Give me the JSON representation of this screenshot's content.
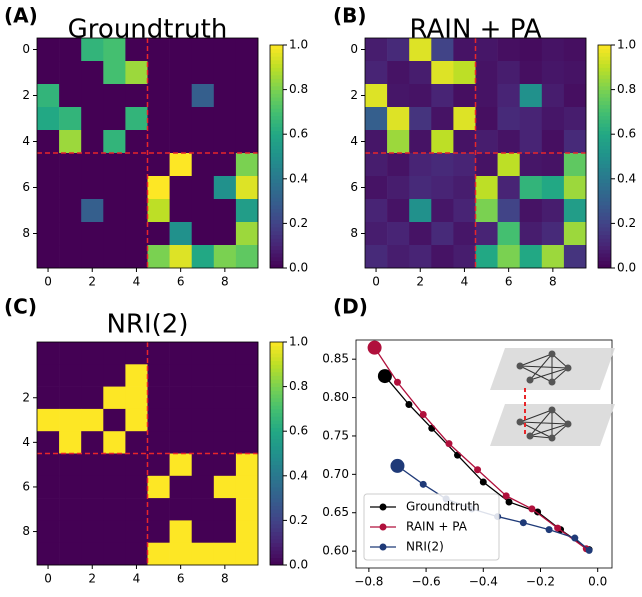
{
  "chart_data": [
    {
      "type": "heatmap",
      "label": "(A)",
      "title": "Groundtruth",
      "colormap": "viridis",
      "values": [
        [
          0,
          0,
          0.65,
          0.7,
          0,
          0,
          0,
          0,
          0,
          0
        ],
        [
          0,
          0,
          0,
          0.7,
          0.85,
          0,
          0,
          0,
          0,
          0
        ],
        [
          0.65,
          0,
          0,
          0,
          0,
          0,
          0,
          0.3,
          0,
          0
        ],
        [
          0.6,
          0.65,
          0,
          0,
          0.65,
          0,
          0,
          0,
          0,
          0
        ],
        [
          0,
          0.85,
          0,
          0.65,
          0,
          0,
          0,
          0,
          0,
          0
        ],
        [
          0,
          0,
          0,
          0,
          0,
          0,
          1.0,
          0,
          0,
          0.8
        ],
        [
          0,
          0,
          0,
          0,
          0,
          1.0,
          0,
          0,
          0.5,
          0.95
        ],
        [
          0,
          0,
          0.3,
          0,
          0,
          0.9,
          0,
          0,
          0,
          0.55
        ],
        [
          0,
          0,
          0,
          0,
          0,
          0,
          0.5,
          0,
          0,
          0.85
        ],
        [
          0,
          0,
          0,
          0,
          0,
          0.8,
          0.95,
          0.6,
          0.8,
          0.75
        ]
      ],
      "xlim": [
        -0.5,
        9.5
      ],
      "ylim": [
        9.5,
        -0.5
      ],
      "xticks": [
        0,
        2,
        4,
        6,
        8
      ],
      "yticks": [
        0,
        2,
        4,
        6,
        8
      ],
      "dividers": [
        4.5
      ],
      "divider_color": "#e8262a",
      "clim": [
        0,
        1
      ],
      "cticks": [
        {
          "value": 0,
          "label": "0.0"
        },
        {
          "value": 0.2,
          "label": "0.2"
        },
        {
          "value": 0.4,
          "label": "0.4"
        },
        {
          "value": 0.6,
          "label": "0.6"
        },
        {
          "value": 0.8,
          "label": "0.8"
        },
        {
          "value": 1,
          "label": "1.0"
        }
      ]
    },
    {
      "type": "heatmap",
      "label": "(B)",
      "title": "RAIN + PA",
      "colormap": "viridis",
      "values": [
        [
          0.08,
          0.12,
          0.95,
          0.2,
          0.05,
          0.06,
          0.04,
          0.03,
          0.05,
          0.04
        ],
        [
          0.1,
          0.05,
          0.08,
          0.95,
          0.9,
          0.05,
          0.08,
          0.04,
          0.06,
          0.05
        ],
        [
          0.95,
          0.06,
          0.05,
          0.1,
          0.04,
          0.05,
          0.1,
          0.5,
          0.08,
          0.04
        ],
        [
          0.3,
          0.95,
          0.15,
          0.05,
          0.95,
          0.04,
          0.12,
          0.1,
          0.06,
          0.08
        ],
        [
          0.06,
          0.85,
          0.05,
          0.9,
          0.05,
          0.08,
          0.05,
          0.1,
          0.04,
          0.12
        ],
        [
          0.08,
          0.05,
          0.1,
          0.12,
          0.1,
          0.05,
          0.9,
          0.06,
          0.05,
          0.75
        ],
        [
          0.05,
          0.08,
          0.12,
          0.1,
          0.08,
          0.9,
          0.1,
          0.65,
          0.6,
          0.85
        ],
        [
          0.1,
          0.05,
          0.5,
          0.06,
          0.1,
          0.8,
          0.2,
          0.05,
          0.08,
          0.55
        ],
        [
          0.08,
          0.1,
          0.05,
          0.12,
          0.06,
          0.1,
          0.7,
          0.08,
          0.12,
          0.85
        ],
        [
          0.12,
          0.08,
          0.1,
          0.05,
          0.08,
          0.6,
          0.8,
          0.6,
          0.85,
          0.15
        ]
      ],
      "xlim": [
        -0.5,
        9.5
      ],
      "ylim": [
        9.5,
        -0.5
      ],
      "xticks": [
        0,
        2,
        4,
        6,
        8
      ],
      "yticks": [
        0,
        2,
        4,
        6,
        8
      ],
      "dividers": [
        4.5
      ],
      "divider_color": "#e8262a",
      "clim": [
        0,
        1
      ],
      "cticks": [
        {
          "value": 0,
          "label": "0.0"
        },
        {
          "value": 0.2,
          "label": "0.2"
        },
        {
          "value": 0.4,
          "label": "0.4"
        },
        {
          "value": 0.6,
          "label": "0.6"
        },
        {
          "value": 0.8,
          "label": "0.8"
        },
        {
          "value": 1,
          "label": "1.0"
        }
      ]
    },
    {
      "type": "heatmap",
      "label": "(C)",
      "title": "NRI(2)",
      "colormap": "viridis",
      "values": [
        [
          0,
          0,
          0,
          0,
          0,
          0,
          0,
          0,
          0,
          0
        ],
        [
          0,
          0,
          0,
          0,
          1,
          0,
          0,
          0,
          0,
          0
        ],
        [
          0,
          0,
          0,
          1,
          1,
          0,
          0,
          0,
          0,
          0
        ],
        [
          1,
          1,
          1,
          0,
          1,
          0,
          0,
          0,
          0,
          0
        ],
        [
          0,
          1,
          0,
          1,
          0,
          0,
          0,
          0,
          0,
          0
        ],
        [
          0,
          0,
          0,
          0,
          0,
          0,
          1,
          0,
          0,
          1
        ],
        [
          0,
          0,
          0,
          0,
          0,
          1,
          0,
          0,
          1,
          1
        ],
        [
          0,
          0,
          0,
          0,
          0,
          0,
          0,
          0,
          0,
          1
        ],
        [
          0,
          0,
          0,
          0,
          0,
          0,
          1,
          0,
          0,
          1
        ],
        [
          0,
          0,
          0,
          0,
          0,
          1,
          1,
          1,
          1,
          1
        ]
      ],
      "xlim": [
        -0.5,
        9.5
      ],
      "ylim": [
        9.5,
        -0.5
      ],
      "xticks": [
        0,
        2,
        4,
        6,
        8
      ],
      "yticks": [
        2,
        4,
        6,
        8
      ],
      "dividers": [
        4.5
      ],
      "divider_color": "#e8262a",
      "clim": [
        0,
        1
      ],
      "cticks": [
        {
          "value": 0,
          "label": "0.0"
        },
        {
          "value": 0.2,
          "label": "0.2"
        },
        {
          "value": 0.4,
          "label": "0.4"
        },
        {
          "value": 0.6,
          "label": "0.6"
        },
        {
          "value": 0.8,
          "label": "0.8"
        },
        {
          "value": 1,
          "label": "1.0"
        }
      ]
    },
    {
      "type": "line",
      "label": "(D)",
      "xlim": [
        -0.845,
        0.05
      ],
      "ylim": [
        0.578,
        0.875
      ],
      "xticks": [
        {
          "value": -0.8,
          "label": "−0.8"
        },
        {
          "value": -0.6,
          "label": "−0.6"
        },
        {
          "value": -0.4,
          "label": "−0.4"
        },
        {
          "value": -0.2,
          "label": "−0.2"
        },
        {
          "value": 0,
          "label": "0.0"
        }
      ],
      "yticks": [
        {
          "value": 0.6,
          "label": "0.60"
        },
        0.65,
        {
          "value": 0.7,
          "label": "0.70"
        },
        0.75,
        {
          "value": 0.8,
          "label": "0.80"
        },
        0.85
      ],
      "legend": "lower left",
      "series": [
        {
          "name": "Groundtruth",
          "color": "#000000",
          "x": [
            -0.744,
            -0.66,
            -0.58,
            -0.49,
            -0.4,
            -0.31,
            -0.21,
            -0.13,
            -0.03
          ],
          "values": [
            0.828,
            0.791,
            0.76,
            0.725,
            0.69,
            0.664,
            0.651,
            0.628,
            0.602
          ]
        },
        {
          "name": "RAIN + PA",
          "color": "#b0103c",
          "x": [
            -0.78,
            -0.7,
            -0.61,
            -0.52,
            -0.42,
            -0.32,
            -0.23,
            -0.14,
            -0.04
          ],
          "values": [
            0.865,
            0.82,
            0.778,
            0.74,
            0.706,
            0.672,
            0.655,
            0.63,
            0.603
          ]
        },
        {
          "name": "NRI(2)",
          "color": "#1f3a78",
          "x": [
            -0.7,
            -0.61,
            -0.53,
            -0.44,
            -0.35,
            -0.26,
            -0.17,
            -0.08,
            -0.03
          ],
          "values": [
            0.711,
            0.687,
            0.668,
            0.655,
            0.645,
            0.637,
            0.628,
            0.617,
            0.601
          ]
        }
      ]
    }
  ]
}
